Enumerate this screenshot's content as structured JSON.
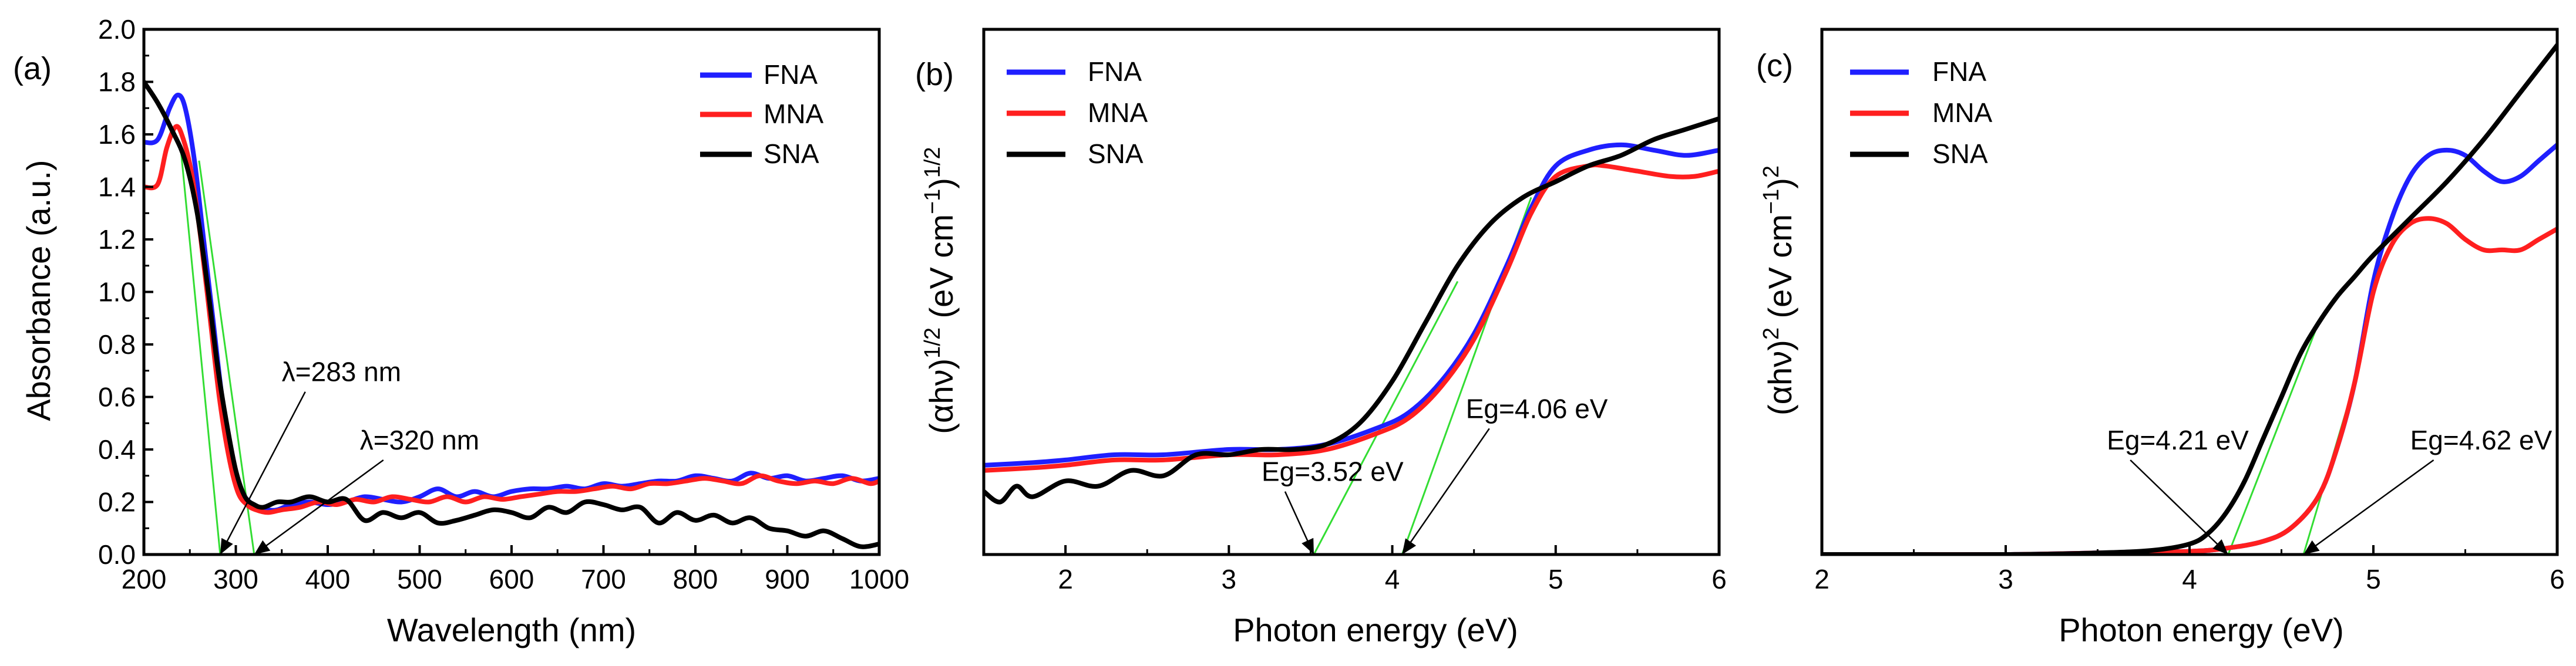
{
  "chart_data": [
    {
      "type": "line",
      "panel_label": "(a)",
      "xlabel": "Wavelength (nm)",
      "ylabel": "Absorbance (a.u.)",
      "xlim": [
        200,
        1000
      ],
      "ylim": [
        0,
        2.0
      ],
      "xticks": [
        200,
        300,
        400,
        500,
        600,
        700,
        800,
        900,
        1000
      ],
      "yticks": [
        0.0,
        0.2,
        0.4,
        0.6,
        0.8,
        1.0,
        1.2,
        1.4,
        1.6,
        1.8,
        2.0
      ],
      "ytick_labels": [
        "0.0",
        "0.2",
        "0.4",
        "0.6",
        "0.8",
        "1.0",
        "1.2",
        "1.4",
        "1.6",
        "1.8",
        "2.0"
      ],
      "legend": [
        "FNA",
        "MNA",
        "SNA"
      ],
      "legend_position": "top-right",
      "series": [
        {
          "name": "FNA",
          "color": "#1f1fff",
          "x": [
            200,
            215,
            228,
            237,
            245,
            255,
            265,
            275,
            285,
            295,
            305,
            315,
            325,
            335,
            345,
            360,
            380,
            400,
            420,
            440,
            460,
            480,
            500,
            520,
            540,
            560,
            580,
            600,
            620,
            640,
            660,
            680,
            700,
            720,
            740,
            760,
            780,
            800,
            820,
            840,
            860,
            880,
            900,
            920,
            940,
            960,
            980,
            1000
          ],
          "y": [
            1.57,
            1.58,
            1.7,
            1.75,
            1.7,
            1.5,
            1.2,
            0.9,
            0.6,
            0.38,
            0.25,
            0.2,
            0.18,
            0.17,
            0.17,
            0.19,
            0.2,
            0.19,
            0.2,
            0.22,
            0.21,
            0.2,
            0.22,
            0.25,
            0.22,
            0.24,
            0.22,
            0.24,
            0.25,
            0.25,
            0.26,
            0.25,
            0.27,
            0.26,
            0.27,
            0.28,
            0.28,
            0.3,
            0.29,
            0.28,
            0.31,
            0.29,
            0.3,
            0.28,
            0.29,
            0.3,
            0.28,
            0.29
          ]
        },
        {
          "name": "MNA",
          "color": "#ff1f1f",
          "x": [
            200,
            215,
            225,
            235,
            243,
            252,
            262,
            272,
            282,
            292,
            302,
            312,
            322,
            335,
            350,
            370,
            390,
            410,
            430,
            450,
            470,
            490,
            510,
            530,
            550,
            570,
            590,
            610,
            630,
            650,
            670,
            690,
            710,
            730,
            750,
            770,
            790,
            810,
            830,
            850,
            870,
            890,
            910,
            930,
            950,
            970,
            990,
            1000
          ],
          "y": [
            1.4,
            1.41,
            1.55,
            1.63,
            1.58,
            1.45,
            1.2,
            0.9,
            0.6,
            0.38,
            0.24,
            0.19,
            0.17,
            0.16,
            0.17,
            0.18,
            0.2,
            0.19,
            0.21,
            0.2,
            0.22,
            0.21,
            0.2,
            0.22,
            0.2,
            0.22,
            0.21,
            0.22,
            0.23,
            0.24,
            0.24,
            0.25,
            0.26,
            0.25,
            0.27,
            0.27,
            0.28,
            0.29,
            0.28,
            0.27,
            0.3,
            0.28,
            0.27,
            0.28,
            0.27,
            0.29,
            0.27,
            0.28
          ]
        },
        {
          "name": "SNA",
          "color": "#000000",
          "x": [
            200,
            215,
            230,
            245,
            258,
            270,
            280,
            290,
            300,
            310,
            320,
            330,
            345,
            360,
            380,
            400,
            420,
            440,
            460,
            480,
            500,
            520,
            540,
            560,
            580,
            600,
            620,
            640,
            660,
            680,
            700,
            720,
            740,
            760,
            780,
            800,
            820,
            840,
            860,
            880,
            900,
            920,
            940,
            960,
            980,
            1000
          ],
          "y": [
            1.8,
            1.72,
            1.62,
            1.5,
            1.3,
            1.0,
            0.72,
            0.5,
            0.32,
            0.22,
            0.19,
            0.18,
            0.2,
            0.2,
            0.22,
            0.2,
            0.21,
            0.13,
            0.16,
            0.14,
            0.16,
            0.12,
            0.13,
            0.15,
            0.17,
            0.16,
            0.14,
            0.18,
            0.16,
            0.2,
            0.19,
            0.17,
            0.18,
            0.12,
            0.16,
            0.13,
            0.15,
            0.12,
            0.14,
            0.1,
            0.09,
            0.07,
            0.09,
            0.06,
            0.03,
            0.04
          ]
        }
      ],
      "tangent_lines": [
        {
          "color": "#33dd33",
          "x": [
            240,
            283
          ],
          "y": [
            1.55,
            0.0
          ]
        },
        {
          "color": "#33dd33",
          "x": [
            260,
            320
          ],
          "y": [
            1.5,
            0.0
          ]
        }
      ],
      "annotations": [
        {
          "text": "λ=283 nm",
          "x": 350,
          "y": 0.66,
          "arrow_to": [
            283,
            0.0
          ]
        },
        {
          "text": "λ=320 nm",
          "x": 435,
          "y": 0.4,
          "arrow_to": [
            320,
            0.0
          ]
        }
      ]
    },
    {
      "type": "line",
      "panel_label": "(b)",
      "xlabel": "Photon energy (eV)",
      "ylabel": "(αhν)1/2 (eV cm−1)1/2",
      "ylabel_parts": {
        "p1": "(αhν)",
        "s1": "1/2",
        "p2": " (eV cm",
        "s2": "−1",
        "p3": ")",
        "s3": "1/2"
      },
      "xlim": [
        1.5,
        6
      ],
      "ylim": [
        0,
        1
      ],
      "xticks": [
        2,
        3,
        4,
        5,
        6
      ],
      "yticks": [],
      "legend": [
        "FNA",
        "MNA",
        "SNA"
      ],
      "legend_position": "top-left",
      "series": [
        {
          "name": "FNA",
          "color": "#1f1fff",
          "x": [
            1.5,
            1.8,
            2.0,
            2.3,
            2.6,
            3.0,
            3.3,
            3.6,
            3.9,
            4.1,
            4.3,
            4.5,
            4.7,
            4.85,
            5.0,
            5.2,
            5.4,
            5.6,
            5.8,
            6.0
          ],
          "y": [
            0.17,
            0.175,
            0.18,
            0.19,
            0.19,
            0.2,
            0.2,
            0.21,
            0.24,
            0.27,
            0.33,
            0.42,
            0.55,
            0.66,
            0.74,
            0.77,
            0.78,
            0.77,
            0.76,
            0.77
          ]
        },
        {
          "name": "MNA",
          "color": "#ff1f1f",
          "x": [
            1.5,
            1.8,
            2.0,
            2.3,
            2.6,
            3.0,
            3.3,
            3.6,
            3.9,
            4.1,
            4.3,
            4.5,
            4.7,
            4.85,
            5.0,
            5.2,
            5.3,
            5.5,
            5.7,
            5.85,
            6.0
          ],
          "y": [
            0.16,
            0.165,
            0.17,
            0.18,
            0.18,
            0.19,
            0.19,
            0.2,
            0.23,
            0.26,
            0.32,
            0.41,
            0.54,
            0.65,
            0.72,
            0.74,
            0.74,
            0.73,
            0.72,
            0.72,
            0.73
          ]
        },
        {
          "name": "SNA",
          "color": "#000000",
          "x": [
            1.5,
            1.6,
            1.7,
            1.8,
            2.0,
            2.2,
            2.4,
            2.6,
            2.8,
            3.0,
            3.2,
            3.4,
            3.6,
            3.8,
            4.0,
            4.2,
            4.4,
            4.6,
            4.8,
            5.0,
            5.2,
            5.4,
            5.6,
            5.8,
            6.0
          ],
          "y": [
            0.12,
            0.1,
            0.13,
            0.11,
            0.14,
            0.13,
            0.16,
            0.15,
            0.19,
            0.19,
            0.2,
            0.2,
            0.21,
            0.25,
            0.33,
            0.44,
            0.55,
            0.63,
            0.68,
            0.71,
            0.74,
            0.76,
            0.79,
            0.81,
            0.83
          ]
        }
      ],
      "tangent_lines": [
        {
          "color": "#33dd33",
          "x": [
            3.52,
            4.4
          ],
          "y": [
            0.0,
            0.52
          ]
        },
        {
          "color": "#33dd33",
          "x": [
            4.06,
            4.85
          ],
          "y": [
            0.0,
            0.68
          ]
        }
      ],
      "annotations": [
        {
          "text": "Eg=3.52 eV",
          "x": 3.2,
          "y": 0.14,
          "arrow_to": [
            3.52,
            0.0
          ]
        },
        {
          "text": "Eg=4.06 eV",
          "x": 4.45,
          "y": 0.26,
          "arrow_to": [
            4.06,
            0.0
          ]
        }
      ]
    },
    {
      "type": "line",
      "panel_label": "(c)",
      "xlabel": "Photon energy (eV)",
      "ylabel": "(αhν)2 (eV cm−1)2",
      "ylabel_parts": {
        "p1": "(αhν)",
        "s1": "2",
        "p2": " (eV cm",
        "s2": "−1",
        "p3": ")",
        "s3": "2"
      },
      "xlim": [
        2,
        6
      ],
      "ylim": [
        0,
        1
      ],
      "xticks": [
        2,
        3,
        4,
        5,
        6
      ],
      "yticks": [],
      "legend": [
        "FNA",
        "MNA",
        "SNA"
      ],
      "legend_position": "top-left",
      "series": [
        {
          "name": "FNA",
          "color": "#1f1fff",
          "x": [
            2.0,
            2.5,
            3.0,
            3.5,
            4.0,
            4.2,
            4.4,
            4.55,
            4.7,
            4.8,
            4.9,
            5.0,
            5.1,
            5.2,
            5.3,
            5.4,
            5.5,
            5.6,
            5.7,
            5.8,
            5.9,
            6.0
          ],
          "y": [
            0.0,
            0.0,
            0.0,
            0.003,
            0.006,
            0.012,
            0.025,
            0.05,
            0.11,
            0.2,
            0.33,
            0.52,
            0.64,
            0.72,
            0.76,
            0.77,
            0.76,
            0.73,
            0.71,
            0.72,
            0.75,
            0.78
          ]
        },
        {
          "name": "MNA",
          "color": "#ff1f1f",
          "x": [
            2.0,
            2.5,
            3.0,
            3.5,
            4.0,
            4.2,
            4.4,
            4.55,
            4.7,
            4.8,
            4.9,
            5.0,
            5.1,
            5.2,
            5.3,
            5.4,
            5.5,
            5.6,
            5.7,
            5.8,
            5.9,
            6.0
          ],
          "y": [
            0.0,
            0.0,
            0.0,
            0.003,
            0.006,
            0.012,
            0.025,
            0.05,
            0.11,
            0.2,
            0.33,
            0.5,
            0.59,
            0.63,
            0.64,
            0.63,
            0.6,
            0.58,
            0.58,
            0.58,
            0.6,
            0.62
          ]
        },
        {
          "name": "SNA",
          "color": "#000000",
          "x": [
            2.0,
            2.5,
            3.0,
            3.5,
            3.8,
            4.0,
            4.1,
            4.2,
            4.3,
            4.4,
            4.5,
            4.6,
            4.7,
            4.8,
            4.9,
            5.0,
            5.2,
            5.4,
            5.6,
            5.8,
            6.0
          ],
          "y": [
            0.0,
            0.0,
            0.0,
            0.003,
            0.008,
            0.02,
            0.04,
            0.08,
            0.14,
            0.22,
            0.3,
            0.38,
            0.44,
            0.49,
            0.53,
            0.57,
            0.64,
            0.71,
            0.79,
            0.88,
            0.97
          ]
        }
      ],
      "tangent_lines": [
        {
          "color": "#33dd33",
          "x": [
            4.21,
            4.7
          ],
          "y": [
            0.0,
            0.44
          ]
        },
        {
          "color": "#33dd33",
          "x": [
            4.62,
            4.9
          ],
          "y": [
            0.0,
            0.33
          ]
        }
      ],
      "annotations": [
        {
          "text": "Eg=4.21 eV",
          "x": 3.55,
          "y": 0.2,
          "arrow_to": [
            4.21,
            0.0
          ]
        },
        {
          "text": "Eg=4.62 eV",
          "x": 5.2,
          "y": 0.2,
          "arrow_to": [
            4.62,
            0.0
          ]
        }
      ]
    }
  ]
}
